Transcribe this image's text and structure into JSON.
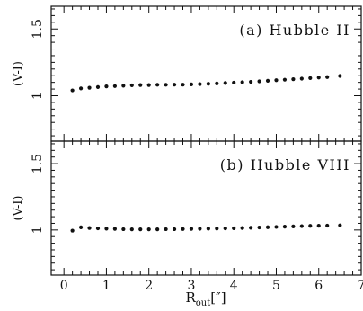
{
  "chart_data": [
    {
      "type": "scatter",
      "panel_label": "(a) Hubble II",
      "ylabel": "(V-I)",
      "xlabel": "R",
      "xlabel_sub": "out",
      "xlabel_unit": "[″]",
      "xlim": [
        -0.3,
        7
      ],
      "ylim": [
        0.66,
        1.67
      ],
      "xticks": [
        0,
        1,
        2,
        3,
        4,
        5,
        6,
        7
      ],
      "yticks": [
        1,
        1.5
      ],
      "ytick_labels": [
        "1",
        "1.5"
      ],
      "series": [
        {
          "x": [
            0.2,
            0.4,
            0.6,
            0.8,
            1.0,
            1.2,
            1.4,
            1.6,
            1.8,
            2.0,
            2.2,
            2.4,
            2.6,
            2.8,
            3.0,
            3.2,
            3.4,
            3.6,
            3.8,
            4.0,
            4.2,
            4.4,
            4.6,
            4.8,
            5.0,
            5.2,
            5.4,
            5.6,
            5.8,
            6.0,
            6.2,
            6.5
          ],
          "y": [
            1.04,
            1.055,
            1.06,
            1.065,
            1.07,
            1.072,
            1.075,
            1.078,
            1.08,
            1.08,
            1.082,
            1.082,
            1.083,
            1.083,
            1.085,
            1.087,
            1.089,
            1.092,
            1.095,
            1.098,
            1.101,
            1.104,
            1.108,
            1.112,
            1.116,
            1.12,
            1.124,
            1.128,
            1.132,
            1.136,
            1.14,
            1.148
          ]
        }
      ]
    },
    {
      "type": "scatter",
      "panel_label": "(b) Hubble VIII",
      "ylabel": "(V-I)",
      "xlabel": "R",
      "xlabel_sub": "out",
      "xlabel_unit": "[″]",
      "xlim": [
        -0.3,
        7
      ],
      "ylim": [
        0.66,
        1.67
      ],
      "xticks": [
        0,
        1,
        2,
        3,
        4,
        5,
        6,
        7
      ],
      "yticks": [
        1,
        1.5
      ],
      "ytick_labels": [
        "1",
        "1.5"
      ],
      "series": [
        {
          "x": [
            0.2,
            0.4,
            0.6,
            0.8,
            1.0,
            1.2,
            1.4,
            1.6,
            1.8,
            2.0,
            2.2,
            2.4,
            2.6,
            2.8,
            3.0,
            3.2,
            3.4,
            3.6,
            3.8,
            4.0,
            4.2,
            4.4,
            4.6,
            4.8,
            5.0,
            5.2,
            5.4,
            5.6,
            5.8,
            6.0,
            6.2,
            6.5
          ],
          "y": [
            0.995,
            1.02,
            1.015,
            1.012,
            1.01,
            1.008,
            1.006,
            1.005,
            1.005,
            1.005,
            1.005,
            1.006,
            1.006,
            1.007,
            1.008,
            1.009,
            1.01,
            1.011,
            1.012,
            1.013,
            1.015,
            1.017,
            1.019,
            1.021,
            1.023,
            1.025,
            1.027,
            1.029,
            1.031,
            1.032,
            1.033,
            1.035
          ]
        }
      ]
    }
  ]
}
